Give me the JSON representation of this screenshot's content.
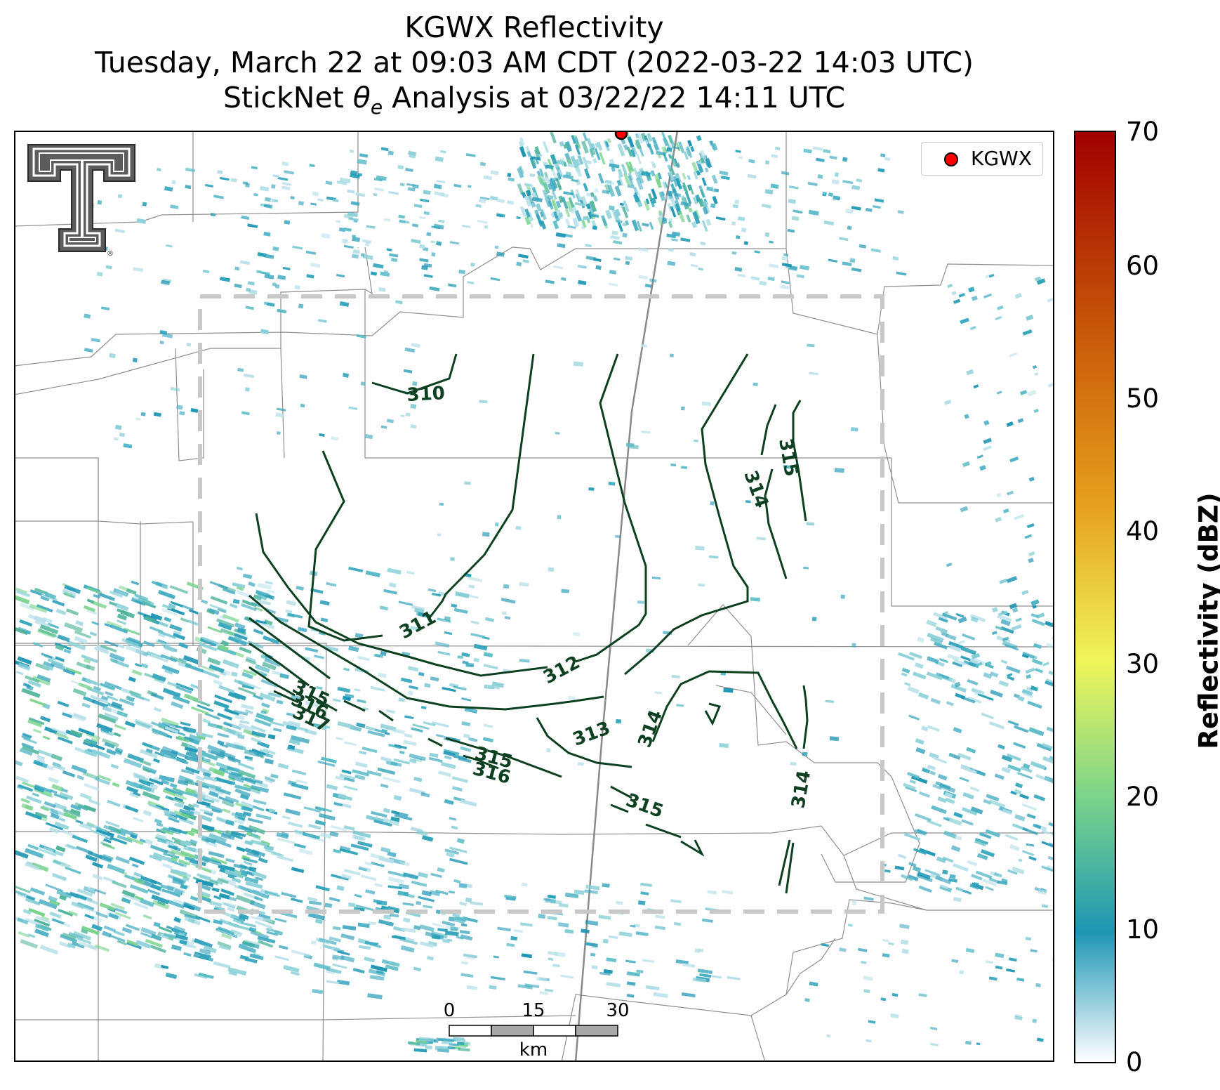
{
  "title": {
    "line1": "KGWX Reflectivity",
    "line2": "Tuesday, March 22 at 09:03 AM CDT (2022-03-22 14:03 UTC)",
    "line3_prefix": "StickNet ",
    "line3_symbol": "θ",
    "line3_sub": "e",
    "line3_suffix": " Analysis at 03/22/22 14:11 UTC"
  },
  "legend": {
    "marker_label": "KGWX",
    "marker_color": "#ff0000"
  },
  "colorbar": {
    "label": "Reflectivity (dBZ)",
    "min": 0,
    "max": 70,
    "ticks": [
      "0",
      "10",
      "20",
      "30",
      "40",
      "50",
      "60",
      "70"
    ],
    "stops": [
      "#ffffff",
      "#1e96b4",
      "#78d28c",
      "#eef55a",
      "#e6a01e",
      "#c85a0a",
      "#a00000"
    ]
  },
  "scalebar": {
    "ticks": [
      "0",
      "15",
      "30"
    ],
    "unit": "km"
  },
  "logo": {
    "name": "texas-tech-double-t-logo",
    "mark": "®"
  },
  "contour_color": "#0d4020",
  "contour_labels": [
    "310",
    "311",
    "312",
    "313",
    "314",
    "314",
    "314",
    "315",
    "315",
    "315",
    "316",
    "317",
    "315",
    "316"
  ],
  "analysis_box_color": "#c8c8c8"
}
